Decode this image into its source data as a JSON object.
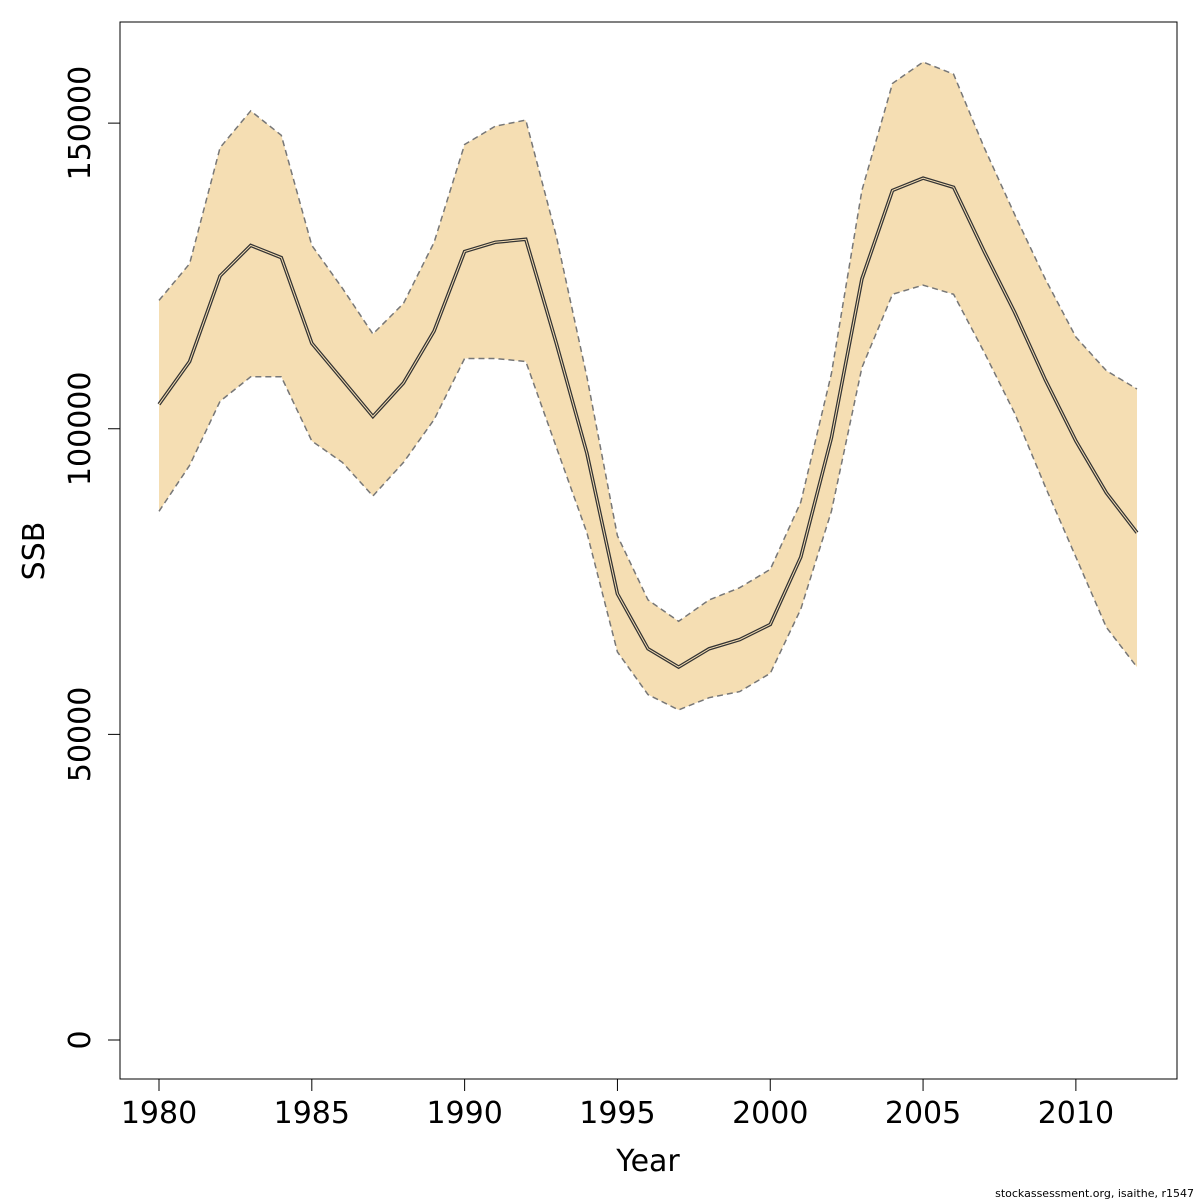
{
  "chart_data": {
    "type": "area",
    "xlabel": "Year",
    "ylabel": "SSB",
    "xlim": [
      1980,
      2012
    ],
    "ylim": [
      0,
      160000
    ],
    "x_ticks": [
      1980,
      1985,
      1990,
      1995,
      2000,
      2005,
      2010
    ],
    "y_ticks": [
      0,
      50000,
      100000,
      150000
    ],
    "x_tick_labels": [
      "1980",
      "1985",
      "1990",
      "1995",
      "2000",
      "2005",
      "2010"
    ],
    "y_tick_labels": [
      "0",
      "50000",
      "100000",
      "150000"
    ],
    "grid": false,
    "colors": {
      "band": "#f5deb3",
      "estimate": "#333333",
      "bounds": "#777777"
    },
    "x": [
      1980,
      1981,
      1982,
      1983,
      1984,
      1985,
      1986,
      1987,
      1988,
      1989,
      1990,
      1991,
      1992,
      1993,
      1994,
      1995,
      1996,
      1997,
      1998,
      1999,
      2000,
      2001,
      2002,
      2003,
      2004,
      2005,
      2006,
      2007,
      2008,
      2009,
      2010,
      2011,
      2012
    ],
    "series": [
      {
        "values": [
          104000,
          111000,
          125000,
          130000,
          128000,
          114000,
          108000,
          102000,
          107500,
          116000,
          129000,
          130500,
          131000,
          114000,
          96000,
          73000,
          64000,
          61000,
          64000,
          65500,
          68000,
          79000,
          98500,
          124500,
          139000,
          141000,
          139500,
          129000,
          119000,
          108000,
          98000,
          89500,
          83000
        ]
      },
      {
        "values": [
          121000,
          127000,
          146000,
          152000,
          148000,
          130000,
          123000,
          115500,
          120500,
          130500,
          146500,
          149500,
          150500,
          131500,
          108500,
          82500,
          72000,
          68500,
          72000,
          74000,
          77000,
          88000,
          109000,
          139000,
          156500,
          160000,
          158000,
          146000,
          135000,
          124500,
          115000,
          109500,
          106500
        ]
      },
      {
        "values": [
          86500,
          94000,
          104500,
          108500,
          108500,
          98000,
          94500,
          89000,
          94500,
          101500,
          111500,
          111500,
          111000,
          97000,
          83000,
          63500,
          56500,
          54000,
          56000,
          57000,
          60000,
          70500,
          86500,
          110000,
          122000,
          123500,
          122000,
          112500,
          102500,
          90500,
          79000,
          67500,
          61000
        ]
      }
    ]
  },
  "footer": "stockassessment.org, isaithe, r1547"
}
